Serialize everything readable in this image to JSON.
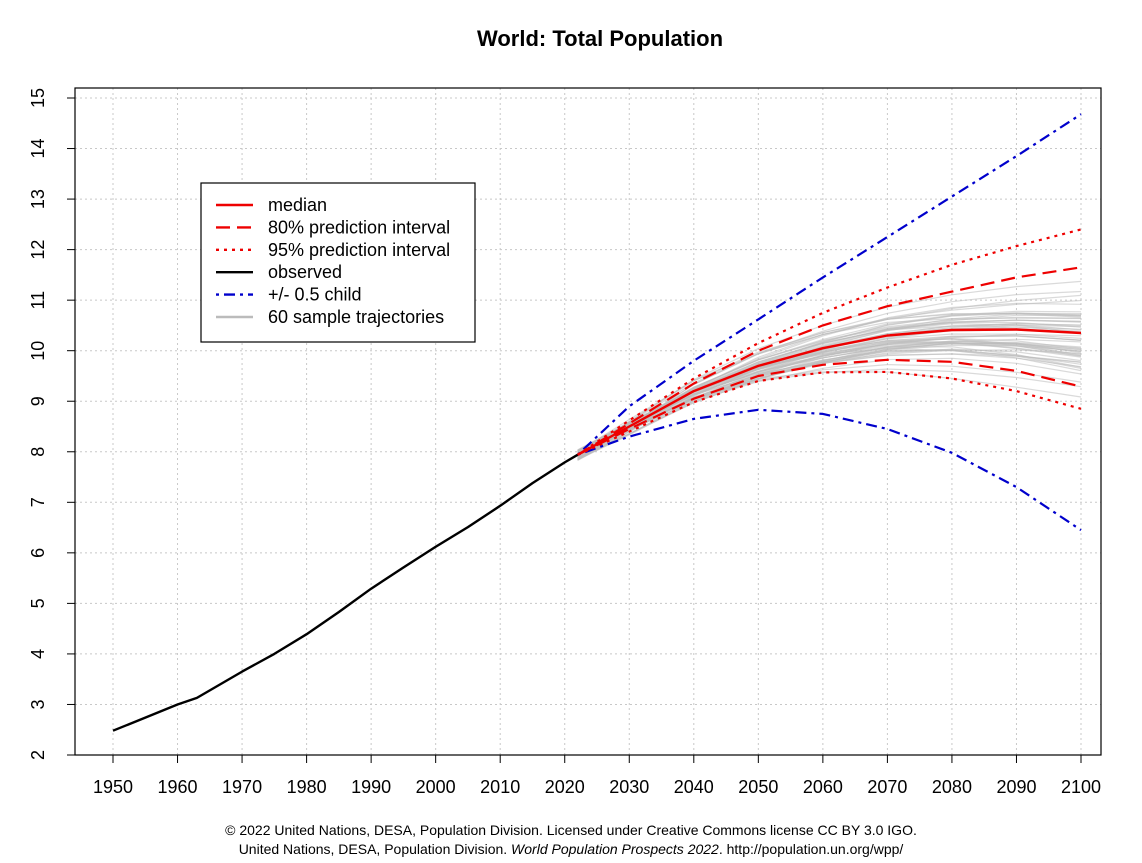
{
  "chart_data": {
    "type": "line",
    "title": "World: Total Population",
    "xlabel": "",
    "ylabel": "",
    "xlim": [
      1945,
      2104
    ],
    "ylim": [
      2,
      15
    ],
    "x_ticks": [
      1950,
      1960,
      1970,
      1980,
      1990,
      2000,
      2010,
      2020,
      2030,
      2040,
      2050,
      2060,
      2070,
      2080,
      2090,
      2100
    ],
    "y_ticks": [
      2,
      3,
      4,
      5,
      6,
      7,
      8,
      9,
      10,
      11,
      12,
      13,
      14,
      15
    ],
    "grid": true,
    "legend_position": "top-left",
    "series": [
      {
        "name": "observed",
        "color": "#000000",
        "style": "solid",
        "x": [
          1950,
          1955,
          1960,
          1963,
          1970,
          1975,
          1980,
          1985,
          1990,
          1995,
          2000,
          2005,
          2010,
          2015,
          2020,
          2022
        ],
        "values": [
          2.48,
          2.74,
          3.0,
          3.13,
          3.65,
          4.0,
          4.39,
          4.83,
          5.29,
          5.71,
          6.12,
          6.51,
          6.93,
          7.38,
          7.79,
          7.94
        ]
      },
      {
        "name": "median",
        "color": "#ee0000",
        "style": "solid",
        "x": [
          2022,
          2030,
          2040,
          2050,
          2060,
          2070,
          2080,
          2090,
          2100
        ],
        "values": [
          7.94,
          8.5,
          9.2,
          9.7,
          10.05,
          10.3,
          10.41,
          10.42,
          10.35
        ]
      },
      {
        "name": "80% prediction interval (upper)",
        "color": "#ee0000",
        "style": "dashed",
        "x": [
          2022,
          2030,
          2040,
          2050,
          2060,
          2070,
          2080,
          2090,
          2100
        ],
        "values": [
          7.94,
          8.56,
          9.35,
          10.0,
          10.5,
          10.88,
          11.17,
          11.45,
          11.65
        ]
      },
      {
        "name": "80% prediction interval (lower)",
        "color": "#ee0000",
        "style": "dashed",
        "x": [
          2022,
          2030,
          2040,
          2050,
          2060,
          2070,
          2080,
          2090,
          2100
        ],
        "values": [
          7.94,
          8.45,
          9.05,
          9.5,
          9.72,
          9.82,
          9.78,
          9.6,
          9.29
        ]
      },
      {
        "name": "95% prediction interval (upper)",
        "color": "#ee0000",
        "style": "dotted",
        "x": [
          2022,
          2030,
          2040,
          2050,
          2060,
          2070,
          2080,
          2090,
          2100
        ],
        "values": [
          7.94,
          8.62,
          9.45,
          10.15,
          10.75,
          11.25,
          11.7,
          12.07,
          12.4
        ]
      },
      {
        "name": "95% prediction interval (lower)",
        "color": "#ee0000",
        "style": "dotted",
        "x": [
          2022,
          2030,
          2040,
          2050,
          2060,
          2070,
          2080,
          2090,
          2100
        ],
        "values": [
          7.94,
          8.4,
          8.98,
          9.4,
          9.57,
          9.58,
          9.45,
          9.2,
          8.85
        ]
      },
      {
        "name": "+/- 0.5 child (upper)",
        "color": "#0000cc",
        "style": "dotdash",
        "x": [
          2022,
          2030,
          2040,
          2050,
          2060,
          2070,
          2080,
          2090,
          2100
        ],
        "values": [
          7.94,
          8.9,
          9.8,
          10.62,
          11.45,
          12.25,
          13.05,
          13.85,
          14.68
        ]
      },
      {
        "name": "+/- 0.5 child (lower)",
        "color": "#0000cc",
        "style": "dotdash",
        "x": [
          2022,
          2030,
          2040,
          2050,
          2060,
          2070,
          2080,
          2090,
          2100
        ],
        "values": [
          7.94,
          8.3,
          8.65,
          8.83,
          8.75,
          8.45,
          7.98,
          7.3,
          6.45
        ]
      }
    ],
    "sample_trajectories": {
      "name": "60 sample trajectories",
      "count": 60,
      "color": "#bbbbbb",
      "x": [
        2022,
        2030,
        2040,
        2050,
        2060,
        2070,
        2080,
        2090,
        2100
      ],
      "range_2100": [
        9.0,
        11.9
      ]
    },
    "legend": [
      {
        "label": "median",
        "color": "#ee0000",
        "style": "solid"
      },
      {
        "label": "80% prediction interval",
        "color": "#ee0000",
        "style": "dashed"
      },
      {
        "label": "95% prediction interval",
        "color": "#ee0000",
        "style": "dotted"
      },
      {
        "label": "observed",
        "color": "#000000",
        "style": "solid"
      },
      {
        "label": "+/- 0.5 child",
        "color": "#0000cc",
        "style": "dotdash"
      },
      {
        "label": "60 sample trajectories",
        "color": "#bbbbbb",
        "style": "solid"
      }
    ]
  },
  "footer": {
    "line1": "© 2022 United Nations, DESA, Population Division. Licensed under Creative Commons license CC BY 3.0 IGO.",
    "line2_prefix": "United Nations, DESA, Population Division. ",
    "line2_italic": "World Population Prospects 2022",
    "line2_suffix": ". http://population.un.org/wpp/"
  }
}
